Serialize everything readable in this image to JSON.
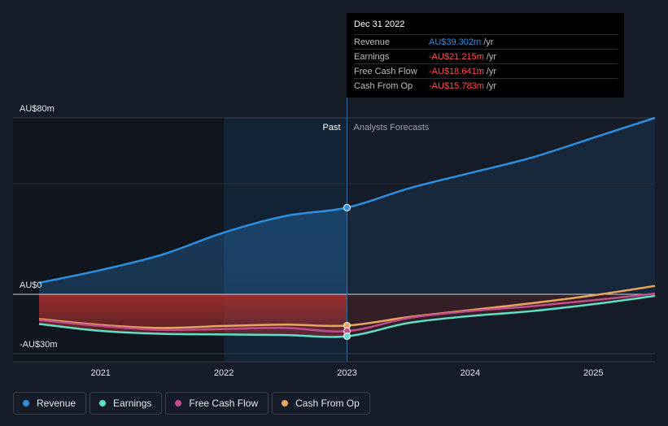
{
  "chart_data": {
    "type": "line",
    "y_ticks": [
      {
        "value": 80,
        "label": "AU$80m"
      },
      {
        "value": 0,
        "label": "AU$0"
      },
      {
        "value": -30,
        "label": "-AU$30m"
      }
    ],
    "x_ticks": [
      {
        "value": 2021,
        "label": "2021"
      },
      {
        "value": 2022,
        "label": "2022"
      },
      {
        "value": 2023,
        "label": "2023"
      },
      {
        "value": 2024,
        "label": "2024"
      },
      {
        "value": 2025,
        "label": "2025"
      }
    ],
    "xlim": [
      2020.5,
      2025.5
    ],
    "ylim": [
      -30,
      80
    ],
    "past_label": "Past",
    "forecast_label": "Analysts Forecasts",
    "divider_x": 2023.0,
    "series": [
      {
        "name": "Revenue",
        "color": "#2d8fe0",
        "x": [
          2020.5,
          2021.0,
          2021.5,
          2022.0,
          2022.5,
          2023.0,
          2023.5,
          2024.0,
          2024.5,
          2025.0,
          2025.5
        ],
        "values": [
          5.2,
          11,
          18,
          28,
          35.5,
          39.3,
          48,
          55,
          62,
          71,
          80
        ]
      },
      {
        "name": "Earnings",
        "color": "#5ee0c8",
        "x": [
          2020.5,
          2021.0,
          2021.5,
          2022.0,
          2022.5,
          2023.0,
          2023.5,
          2024.0,
          2024.5,
          2025.0,
          2025.5
        ],
        "values": [
          -15,
          -18.5,
          -20,
          -20.3,
          -20.6,
          -21.2,
          -14.5,
          -11,
          -8.5,
          -5,
          -0.8
        ]
      },
      {
        "name": "Free Cash Flow",
        "color": "#c24d8e",
        "x": [
          2020.5,
          2021.0,
          2021.5,
          2022.0,
          2022.5,
          2023.0,
          2023.5,
          2024.0,
          2024.5,
          2025.0,
          2025.5
        ],
        "values": [
          -13,
          -16,
          -18,
          -17.5,
          -17,
          -18.6,
          -12,
          -8.5,
          -6,
          -3,
          0.3
        ]
      },
      {
        "name": "Cash From Op",
        "color": "#e8a65c",
        "x": [
          2020.5,
          2021.0,
          2021.5,
          2022.0,
          2022.5,
          2023.0,
          2023.5,
          2024.0,
          2024.5,
          2025.0,
          2025.5
        ],
        "values": [
          -12.5,
          -15.5,
          -17,
          -16,
          -15.3,
          -15.8,
          -11.5,
          -8,
          -4.5,
          -0.5,
          3.8
        ]
      }
    ],
    "tooltip": {
      "title": "Dec 31 2022",
      "rows": [
        {
          "name": "Revenue",
          "value": "AU$39.302m",
          "unit": "/yr",
          "color": "#2d8fe0"
        },
        {
          "name": "Earnings",
          "value": "-AU$21.215m",
          "unit": "/yr",
          "color": "#ff4d4d"
        },
        {
          "name": "Free Cash Flow",
          "value": "-AU$18.641m",
          "unit": "/yr",
          "color": "#ff4d4d"
        },
        {
          "name": "Cash From Op",
          "value": "-AU$15.783m",
          "unit": "/yr",
          "color": "#ff4d4d"
        }
      ]
    }
  },
  "legend": [
    {
      "label": "Revenue",
      "color": "#2d8fe0"
    },
    {
      "label": "Earnings",
      "color": "#5ee0c8"
    },
    {
      "label": "Free Cash Flow",
      "color": "#c24d8e"
    },
    {
      "label": "Cash From Op",
      "color": "#e8a65c"
    }
  ]
}
